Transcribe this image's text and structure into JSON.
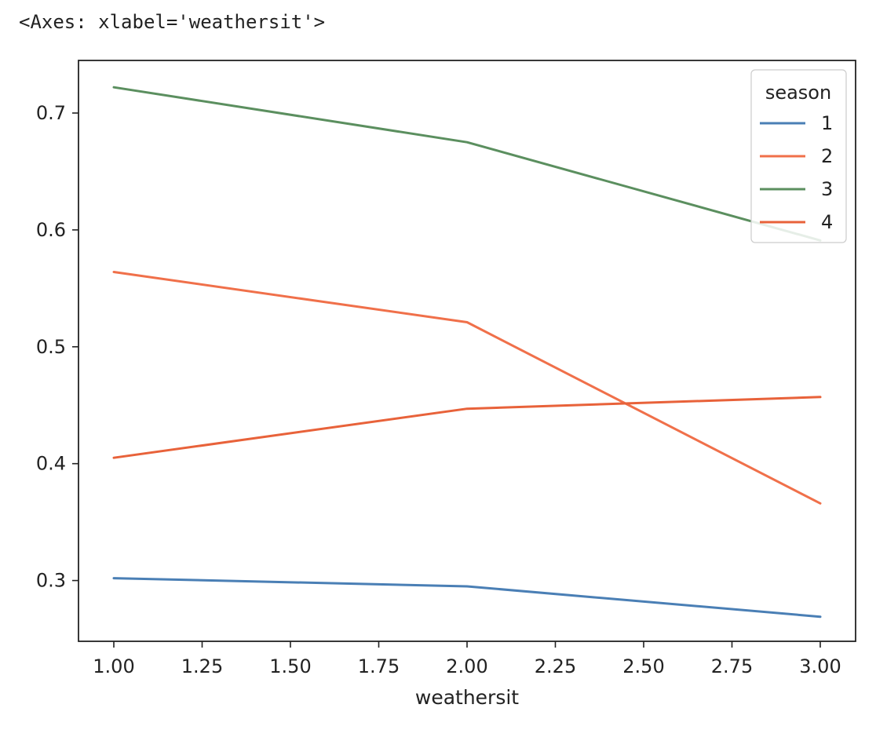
{
  "output_repr": "<Axes: xlabel='weathersit'>",
  "chart_data": {
    "type": "line",
    "xlabel": "weathersit",
    "ylabel": "",
    "xlim": [
      0.9,
      3.1
    ],
    "ylim": [
      0.248,
      0.745
    ],
    "xticks": [
      1.0,
      1.25,
      1.5,
      1.75,
      2.0,
      2.25,
      2.5,
      2.75,
      3.0
    ],
    "xtick_labels": [
      "1.00",
      "1.25",
      "1.50",
      "1.75",
      "2.00",
      "2.25",
      "2.50",
      "2.75",
      "3.00"
    ],
    "yticks": [
      0.3,
      0.4,
      0.5,
      0.6,
      0.7
    ],
    "ytick_labels": [
      "0.3",
      "0.4",
      "0.5",
      "0.6",
      "0.7"
    ],
    "grid": false,
    "legend": {
      "title": "season",
      "placement": "upper right"
    },
    "x": [
      1.0,
      2.0,
      3.0
    ],
    "series": [
      {
        "name": "1",
        "values": [
          0.302,
          0.295,
          0.269
        ],
        "color": "#4a7fb5"
      },
      {
        "name": "2",
        "values": [
          0.564,
          0.521,
          0.366
        ],
        "color": "#f0704a"
      },
      {
        "name": "3",
        "values": [
          0.722,
          0.675,
          0.591
        ],
        "color": "#5b8f5f"
      },
      {
        "name": "4",
        "values": [
          0.405,
          0.447,
          0.457
        ],
        "color": "#e8623a"
      }
    ]
  }
}
